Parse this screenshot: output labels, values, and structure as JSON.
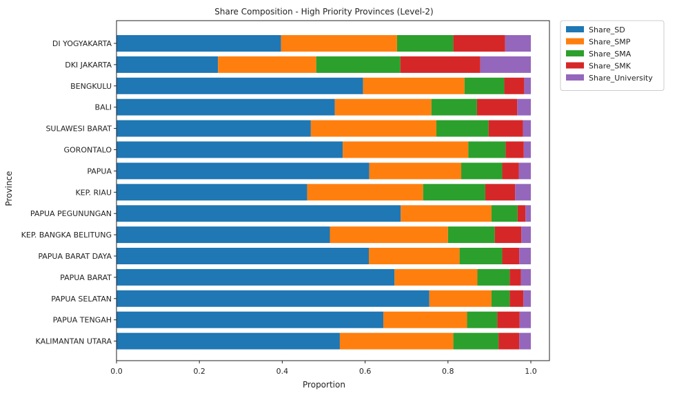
{
  "chart_data": {
    "type": "bar",
    "orientation": "horizontal",
    "stacked": true,
    "title": "Share Composition - High Priority Provinces (Level-2)",
    "xlabel": "Proportion",
    "ylabel": "Province",
    "xlim": [
      0,
      1.0
    ],
    "xticks": [
      "0.0",
      "0.2",
      "0.4",
      "0.6",
      "0.8",
      "1.0"
    ],
    "grid": false,
    "legend_position": "outside-top-right",
    "categories": [
      "DI YOGYAKARTA",
      "DKI JAKARTA",
      "BENGKULU",
      "BALI",
      "SULAWESI BARAT",
      "GORONTALO",
      "PAPUA",
      "KEP. RIAU",
      "PAPUA PEGUNUNGAN",
      "KEP. BANGKA BELITUNG",
      "PAPUA BARAT DAYA",
      "PAPUA BARAT",
      "PAPUA SELATAN",
      "PAPUA TENGAH",
      "KALIMANTAN UTARA"
    ],
    "series": [
      {
        "name": "Share_SD",
        "color": "#1f77b4",
        "values": [
          0.397,
          0.245,
          0.595,
          0.527,
          0.469,
          0.546,
          0.61,
          0.46,
          0.686,
          0.515,
          0.609,
          0.671,
          0.755,
          0.644,
          0.539
        ]
      },
      {
        "name": "Share_SMP",
        "color": "#ff7f0e",
        "values": [
          0.28,
          0.237,
          0.245,
          0.233,
          0.303,
          0.303,
          0.222,
          0.28,
          0.219,
          0.285,
          0.219,
          0.2,
          0.15,
          0.202,
          0.274
        ]
      },
      {
        "name": "Share_SMA",
        "color": "#2ca02c",
        "values": [
          0.136,
          0.203,
          0.096,
          0.11,
          0.126,
          0.09,
          0.099,
          0.15,
          0.063,
          0.113,
          0.103,
          0.078,
          0.044,
          0.073,
          0.109
        ]
      },
      {
        "name": "Share_SMK",
        "color": "#d62728",
        "values": [
          0.125,
          0.193,
          0.048,
          0.097,
          0.083,
          0.044,
          0.04,
          0.072,
          0.019,
          0.064,
          0.041,
          0.027,
          0.033,
          0.054,
          0.05
        ]
      },
      {
        "name": "Share_University",
        "color": "#9467bd",
        "values": [
          0.062,
          0.122,
          0.016,
          0.033,
          0.019,
          0.017,
          0.029,
          0.038,
          0.013,
          0.023,
          0.028,
          0.024,
          0.018,
          0.027,
          0.028
        ]
      }
    ]
  }
}
